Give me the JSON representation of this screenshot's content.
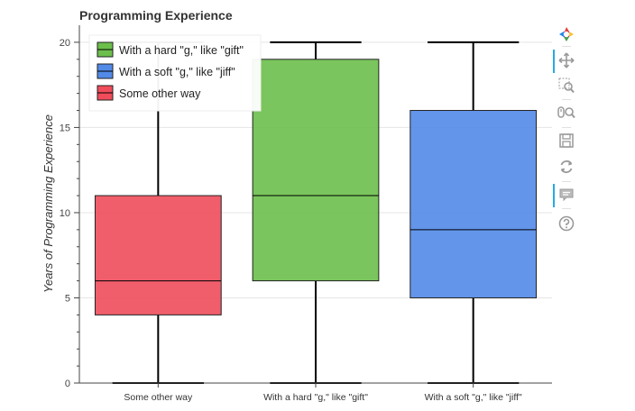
{
  "chart_data": {
    "type": "box",
    "title": "Programming Experience",
    "xlabel": "",
    "ylabel": "Years of Programming Experience",
    "ylim": [
      0,
      21
    ],
    "yticks": [
      0,
      5,
      10,
      15,
      20
    ],
    "grid": true,
    "legend_position": "top-left",
    "categories": [
      "Some other way",
      "With a hard \"g,\" like \"gift\"",
      "With a soft \"g,\" like \"jiff\""
    ],
    "boxes": [
      {
        "category": "Some other way",
        "min": 0,
        "q1": 4,
        "median": 6,
        "q3": 11,
        "max": 20,
        "color": "#f04c5b"
      },
      {
        "category": "With a hard \"g,\" like \"gift\"",
        "min": 0,
        "q1": 6,
        "median": 11,
        "q3": 19,
        "max": 20,
        "color": "#6cbf4b"
      },
      {
        "category": "With a soft \"g,\" like \"jiff\"",
        "min": 0,
        "q1": 5,
        "median": 9,
        "q3": 16,
        "max": 20,
        "color": "#528ae8"
      }
    ],
    "legend": [
      {
        "label": "With a hard \"g,\" like \"gift\"",
        "color": "#6cbf4b"
      },
      {
        "label": "With a soft \"g,\" like \"jiff\"",
        "color": "#528ae8"
      },
      {
        "label": "Some other way",
        "color": "#f04c5b"
      }
    ]
  },
  "toolbar": {
    "tools": [
      {
        "icon": "bokeh-logo-icon",
        "active": false
      },
      {
        "icon": "pan-icon",
        "active": true
      },
      {
        "icon": "box-zoom-icon",
        "active": false
      },
      {
        "icon": "wheel-zoom-icon",
        "active": false
      },
      {
        "icon": "save-icon",
        "active": false
      },
      {
        "icon": "reset-icon",
        "active": false
      },
      {
        "icon": "hover-icon",
        "active": true
      },
      {
        "icon": "help-icon",
        "active": false
      }
    ]
  }
}
